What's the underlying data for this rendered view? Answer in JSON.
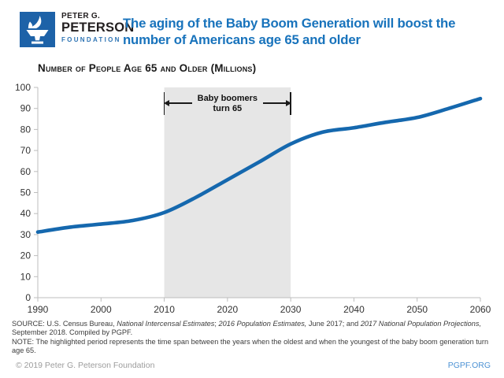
{
  "header": {
    "logo": {
      "line1": "PETER G.",
      "line2": "PETERSON",
      "line3": "FOUNDATION",
      "square_color": "#1D62A8",
      "foundation_color": "#2E74B4"
    },
    "title_lines": [
      "The aging of the Baby Boom Generation will boost the",
      "number of Americans age 65 and older"
    ],
    "title_color": "#1873BC"
  },
  "chart_data": {
    "type": "line",
    "title": "Number of People Age 65 and Older (Millions)",
    "xlabel": "",
    "ylabel": "Number of people age 65 and older, millions",
    "x": [
      1990,
      1995,
      2000,
      2005,
      2010,
      2015,
      2020,
      2025,
      2030,
      2035,
      2040,
      2045,
      2050,
      2055,
      2060
    ],
    "values": [
      31.2,
      33.5,
      35.0,
      36.7,
      40.5,
      47.7,
      56.1,
      64.5,
      73.1,
      78.7,
      80.8,
      83.4,
      85.7,
      90.0,
      94.7
    ],
    "xlim": [
      1990,
      2060
    ],
    "ylim": [
      0,
      100
    ],
    "xticks": [
      1990,
      2000,
      2010,
      2020,
      2030,
      2040,
      2050,
      2060
    ],
    "yticks": [
      0,
      10,
      20,
      30,
      40,
      50,
      60,
      70,
      80,
      90,
      100
    ],
    "grid": false,
    "legend": "none",
    "line_color": "#1568AE",
    "axis_color": "#BDBDBD",
    "band": {
      "from": 2010,
      "to": 2030,
      "color": "#E6E6E6",
      "label": "Baby boomers turn 65"
    }
  },
  "source": {
    "source_segments": [
      {
        "text": "SOURCE: U.S. Census Bureau, ",
        "italic": false
      },
      {
        "text": "National Intercensal Estimates",
        "italic": true
      },
      {
        "text": "; ",
        "italic": false
      },
      {
        "text": "2016 Population Estimates,",
        "italic": true
      },
      {
        "text": " June 2017; and ",
        "italic": false
      },
      {
        "text": "2017 National Population Projections,",
        "italic": true
      },
      {
        "text": " September 2018. Compiled by PGPF.",
        "italic": false
      }
    ],
    "note": "NOTE: The highlighted period represents the time span between the years when the oldest and when the youngest of the baby boom generation turn age 65."
  },
  "footer": {
    "copyright": "© 2019 Peter G. Peterson Foundation",
    "link": "PGPF.ORG",
    "link_color": "#4C92D4"
  }
}
